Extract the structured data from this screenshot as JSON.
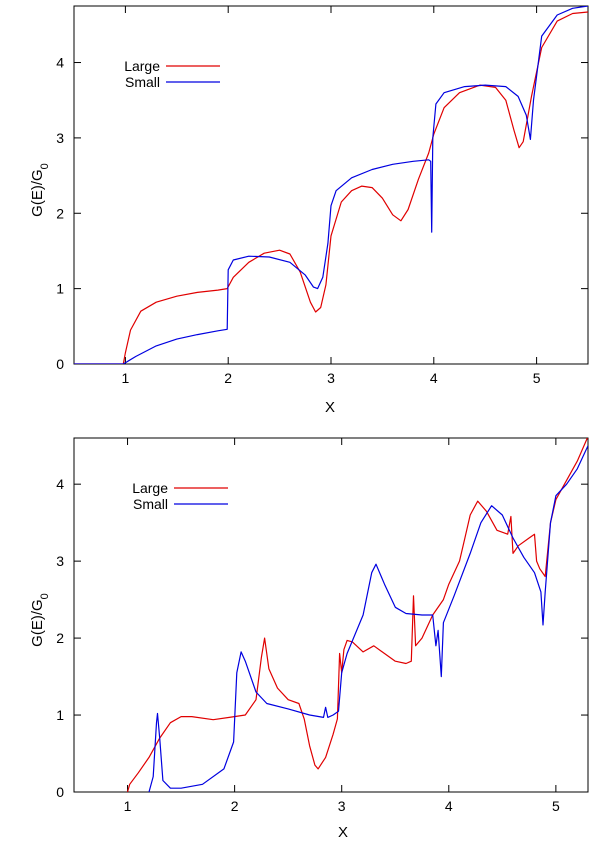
{
  "chart_data": [
    {
      "type": "line",
      "title": "",
      "xlabel": "X",
      "ylabel": "G(E)/G0",
      "ylabel_main": "G(E)/G",
      "ylabel_sub": "0",
      "xlim": [
        0.5,
        5.5
      ],
      "ylim": [
        0,
        4.75
      ],
      "xticks": [
        1,
        2,
        3,
        4,
        5
      ],
      "yticks": [
        0,
        1,
        2,
        3,
        4
      ],
      "xtick_labels": [
        "1",
        "2",
        "3",
        "4",
        "5"
      ],
      "ytick_labels": [
        "0",
        "1",
        "2",
        "3",
        "4"
      ],
      "grid": false,
      "legend_position": "top-left",
      "series": [
        {
          "name": "Large",
          "color": "#e00000",
          "points": [
            [
              0.5,
              0
            ],
            [
              0.98,
              0
            ],
            [
              1.0,
              0.15
            ],
            [
              1.05,
              0.45
            ],
            [
              1.15,
              0.7
            ],
            [
              1.3,
              0.82
            ],
            [
              1.5,
              0.9
            ],
            [
              1.7,
              0.95
            ],
            [
              1.9,
              0.98
            ],
            [
              1.99,
              1.0
            ],
            [
              2.05,
              1.15
            ],
            [
              2.2,
              1.35
            ],
            [
              2.35,
              1.47
            ],
            [
              2.5,
              1.51
            ],
            [
              2.6,
              1.46
            ],
            [
              2.7,
              1.22
            ],
            [
              2.8,
              0.82
            ],
            [
              2.85,
              0.69
            ],
            [
              2.9,
              0.75
            ],
            [
              2.95,
              1.05
            ],
            [
              3.0,
              1.7
            ],
            [
              3.1,
              2.15
            ],
            [
              3.2,
              2.3
            ],
            [
              3.3,
              2.36
            ],
            [
              3.4,
              2.34
            ],
            [
              3.5,
              2.2
            ],
            [
              3.6,
              1.98
            ],
            [
              3.68,
              1.9
            ],
            [
              3.75,
              2.05
            ],
            [
              3.85,
              2.45
            ],
            [
              3.95,
              2.8
            ],
            [
              4.0,
              3.05
            ],
            [
              4.1,
              3.4
            ],
            [
              4.25,
              3.6
            ],
            [
              4.45,
              3.7
            ],
            [
              4.6,
              3.67
            ],
            [
              4.7,
              3.5
            ],
            [
              4.78,
              3.1
            ],
            [
              4.83,
              2.87
            ],
            [
              4.87,
              2.95
            ],
            [
              4.95,
              3.55
            ],
            [
              5.05,
              4.2
            ],
            [
              5.2,
              4.55
            ],
            [
              5.35,
              4.65
            ],
            [
              5.5,
              4.67
            ]
          ]
        },
        {
          "name": "Small",
          "color": "#0000e0",
          "points": [
            [
              0.5,
              0
            ],
            [
              0.98,
              0
            ],
            [
              1.1,
              0.1
            ],
            [
              1.3,
              0.24
            ],
            [
              1.5,
              0.33
            ],
            [
              1.7,
              0.39
            ],
            [
              1.9,
              0.44
            ],
            [
              1.99,
              0.46
            ],
            [
              2.0,
              1.25
            ],
            [
              2.05,
              1.38
            ],
            [
              2.2,
              1.43
            ],
            [
              2.4,
              1.42
            ],
            [
              2.6,
              1.35
            ],
            [
              2.75,
              1.18
            ],
            [
              2.83,
              1.02
            ],
            [
              2.87,
              1.0
            ],
            [
              2.92,
              1.15
            ],
            [
              2.97,
              1.6
            ],
            [
              3.0,
              2.1
            ],
            [
              3.05,
              2.3
            ],
            [
              3.2,
              2.47
            ],
            [
              3.4,
              2.58
            ],
            [
              3.6,
              2.65
            ],
            [
              3.8,
              2.69
            ],
            [
              3.95,
              2.71
            ],
            [
              3.97,
              2.69
            ],
            [
              3.98,
              1.75
            ],
            [
              3.99,
              3.0
            ],
            [
              4.02,
              3.45
            ],
            [
              4.1,
              3.6
            ],
            [
              4.3,
              3.68
            ],
            [
              4.5,
              3.7
            ],
            [
              4.7,
              3.68
            ],
            [
              4.82,
              3.55
            ],
            [
              4.9,
              3.3
            ],
            [
              4.94,
              2.98
            ],
            [
              4.97,
              3.5
            ],
            [
              5.05,
              4.35
            ],
            [
              5.2,
              4.63
            ],
            [
              5.35,
              4.72
            ],
            [
              5.5,
              4.75
            ]
          ]
        }
      ]
    },
    {
      "type": "line",
      "title": "",
      "xlabel": "X",
      "ylabel": "G(E)/G0",
      "ylabel_main": "G(E)/G",
      "ylabel_sub": "0",
      "xlim": [
        0.5,
        5.3
      ],
      "ylim": [
        0,
        4.6
      ],
      "xticks": [
        1,
        2,
        3,
        4,
        5
      ],
      "yticks": [
        0,
        1,
        2,
        3,
        4
      ],
      "xtick_labels": [
        "1",
        "2",
        "3",
        "4",
        "5"
      ],
      "ytick_labels": [
        "0",
        "1",
        "2",
        "3",
        "4"
      ],
      "grid": false,
      "legend_position": "top-left",
      "series": [
        {
          "name": "Large",
          "color": "#e00000",
          "points": [
            [
              1.0,
              0.0
            ],
            [
              1.02,
              0.1
            ],
            [
              1.1,
              0.25
            ],
            [
              1.2,
              0.45
            ],
            [
              1.3,
              0.7
            ],
            [
              1.4,
              0.9
            ],
            [
              1.5,
              0.98
            ],
            [
              1.6,
              0.98
            ],
            [
              1.8,
              0.94
            ],
            [
              1.95,
              0.97
            ],
            [
              2.1,
              1.0
            ],
            [
              2.2,
              1.2
            ],
            [
              2.25,
              1.75
            ],
            [
              2.28,
              2.0
            ],
            [
              2.32,
              1.6
            ],
            [
              2.4,
              1.35
            ],
            [
              2.5,
              1.2
            ],
            [
              2.6,
              1.15
            ],
            [
              2.65,
              0.95
            ],
            [
              2.7,
              0.6
            ],
            [
              2.75,
              0.35
            ],
            [
              2.78,
              0.3
            ],
            [
              2.85,
              0.45
            ],
            [
              2.92,
              0.75
            ],
            [
              2.96,
              0.95
            ],
            [
              2.98,
              1.8
            ],
            [
              3.0,
              1.55
            ],
            [
              3.02,
              1.85
            ],
            [
              3.05,
              1.97
            ],
            [
              3.1,
              1.95
            ],
            [
              3.2,
              1.82
            ],
            [
              3.3,
              1.9
            ],
            [
              3.4,
              1.8
            ],
            [
              3.5,
              1.7
            ],
            [
              3.6,
              1.67
            ],
            [
              3.65,
              1.7
            ],
            [
              3.67,
              2.55
            ],
            [
              3.69,
              1.9
            ],
            [
              3.75,
              2.0
            ],
            [
              3.85,
              2.3
            ],
            [
              3.95,
              2.5
            ],
            [
              4.0,
              2.7
            ],
            [
              4.1,
              3.0
            ],
            [
              4.15,
              3.3
            ],
            [
              4.2,
              3.6
            ],
            [
              4.27,
              3.78
            ],
            [
              4.35,
              3.65
            ],
            [
              4.45,
              3.4
            ],
            [
              4.55,
              3.35
            ],
            [
              4.58,
              3.58
            ],
            [
              4.6,
              3.1
            ],
            [
              4.65,
              3.2
            ],
            [
              4.75,
              3.3
            ],
            [
              4.8,
              3.35
            ],
            [
              4.82,
              3.0
            ],
            [
              4.85,
              2.9
            ],
            [
              4.9,
              2.8
            ],
            [
              4.95,
              3.5
            ],
            [
              5.0,
              3.8
            ],
            [
              5.1,
              4.05
            ],
            [
              5.2,
              4.3
            ],
            [
              5.3,
              4.62
            ]
          ]
        },
        {
          "name": "Small",
          "color": "#0000e0",
          "points": [
            [
              1.2,
              0.0
            ],
            [
              1.24,
              0.2
            ],
            [
              1.27,
              0.9
            ],
            [
              1.28,
              1.02
            ],
            [
              1.3,
              0.7
            ],
            [
              1.33,
              0.15
            ],
            [
              1.4,
              0.05
            ],
            [
              1.5,
              0.05
            ],
            [
              1.7,
              0.1
            ],
            [
              1.9,
              0.3
            ],
            [
              1.99,
              0.65
            ],
            [
              2.02,
              1.55
            ],
            [
              2.06,
              1.82
            ],
            [
              2.1,
              1.7
            ],
            [
              2.2,
              1.3
            ],
            [
              2.3,
              1.15
            ],
            [
              2.5,
              1.08
            ],
            [
              2.7,
              1.0
            ],
            [
              2.83,
              0.97
            ],
            [
              2.85,
              1.1
            ],
            [
              2.87,
              0.97
            ],
            [
              2.92,
              1.0
            ],
            [
              2.97,
              1.05
            ],
            [
              3.0,
              1.55
            ],
            [
              3.05,
              1.8
            ],
            [
              3.2,
              2.3
            ],
            [
              3.28,
              2.85
            ],
            [
              3.32,
              2.96
            ],
            [
              3.4,
              2.7
            ],
            [
              3.5,
              2.4
            ],
            [
              3.6,
              2.32
            ],
            [
              3.75,
              2.3
            ],
            [
              3.85,
              2.3
            ],
            [
              3.88,
              1.9
            ],
            [
              3.9,
              2.1
            ],
            [
              3.93,
              1.5
            ],
            [
              3.95,
              2.2
            ],
            [
              4.05,
              2.55
            ],
            [
              4.2,
              3.1
            ],
            [
              4.3,
              3.5
            ],
            [
              4.4,
              3.72
            ],
            [
              4.5,
              3.6
            ],
            [
              4.6,
              3.3
            ],
            [
              4.7,
              3.05
            ],
            [
              4.8,
              2.85
            ],
            [
              4.86,
              2.6
            ],
            [
              4.88,
              2.17
            ],
            [
              4.9,
              2.6
            ],
            [
              4.95,
              3.5
            ],
            [
              5.0,
              3.85
            ],
            [
              5.1,
              4.0
            ],
            [
              5.2,
              4.2
            ],
            [
              5.3,
              4.5
            ]
          ]
        }
      ]
    }
  ]
}
